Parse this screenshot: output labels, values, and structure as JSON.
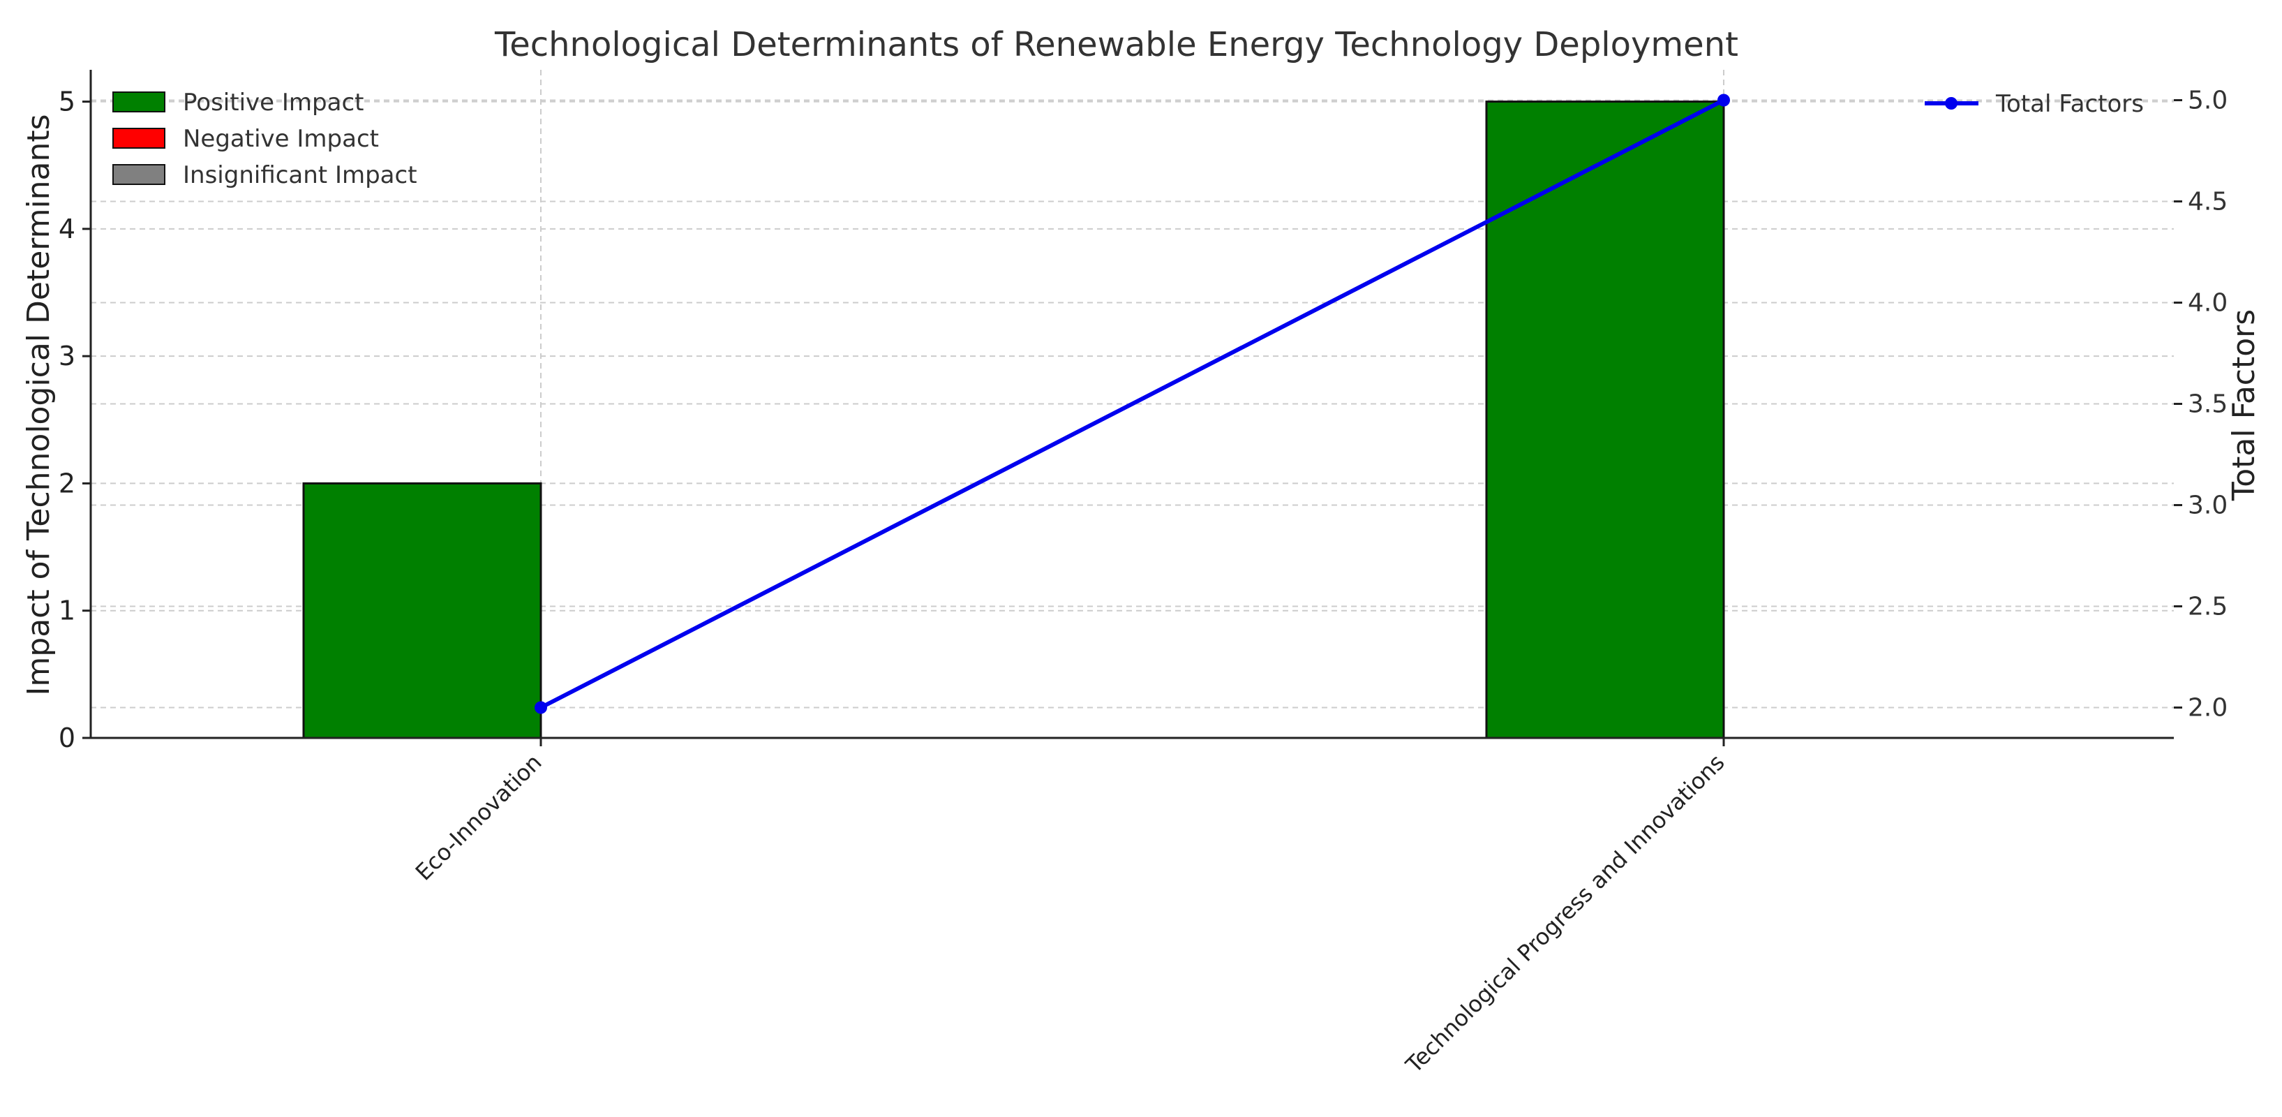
{
  "chart_data": {
    "type": "bar",
    "title": "Technological Determinants of Renewable Energy Technology Deployment",
    "xlabel": "",
    "ylabel": "Impact of Technological Determinants",
    "y2label": "Total Factors",
    "categories": [
      "Eco-Innovation",
      "Technological Progress and Innovations"
    ],
    "ylim": [
      0,
      5.25
    ],
    "y2lim": [
      1.85,
      5.15
    ],
    "yticks": [
      "0",
      "1",
      "2",
      "3",
      "4",
      "5"
    ],
    "y2ticks": [
      "2.0",
      "2.5",
      "3.0",
      "3.5",
      "4.0",
      "4.5",
      "5.0"
    ],
    "grid": true,
    "series": [
      {
        "name": "Positive Impact",
        "kind": "bar",
        "color": "#008000",
        "values": [
          2,
          5
        ]
      },
      {
        "name": "Negative Impact",
        "kind": "bar",
        "color": "#ff0000",
        "values": [
          0,
          0
        ]
      },
      {
        "name": "Insignificant Impact",
        "kind": "bar",
        "color": "#808080",
        "values": [
          0,
          0
        ]
      },
      {
        "name": "Total Factors",
        "kind": "line",
        "axis": "right",
        "color": "#0000ee",
        "values": [
          2,
          5
        ]
      }
    ],
    "legend_left_position": "top-left",
    "legend_right_position": "top-right"
  }
}
